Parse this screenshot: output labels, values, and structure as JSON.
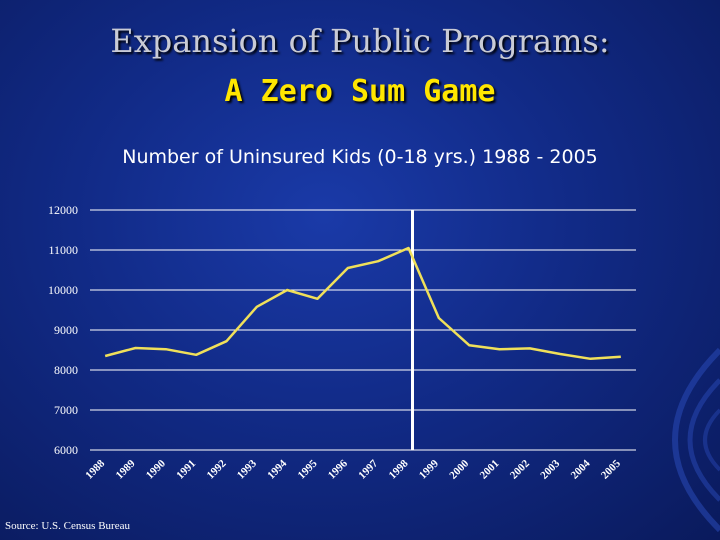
{
  "slide": {
    "title": "Expansion of Public Programs:",
    "subtitle_highlight": "A Zero Sum Game",
    "source": "Source: U.S. Census Bureau"
  },
  "colors": {
    "line": "#f0e05a",
    "marker_line": "#ffffff",
    "grid": "#ffffff"
  },
  "chart_data": {
    "type": "line",
    "title": "Number of Uninsured Kids (0-18 yrs.) 1988 - 2005",
    "xlabel": "",
    "ylabel": "",
    "categories": [
      "1988",
      "1989",
      "1990",
      "1991",
      "1992",
      "1993",
      "1994",
      "1995",
      "1996",
      "1997",
      "1998",
      "1999",
      "2000",
      "2001",
      "2002",
      "2003",
      "2004",
      "2005"
    ],
    "series": [
      {
        "name": "Uninsured Kids",
        "values": [
          8350,
          8550,
          8520,
          8380,
          8720,
          9580,
          10000,
          9780,
          10550,
          10720,
          11050,
          9300,
          8620,
          8520,
          8540,
          8400,
          8280,
          8330
        ]
      }
    ],
    "ylim": [
      6000,
      12000
    ],
    "yticks": [
      6000,
      7000,
      8000,
      9000,
      10000,
      11000,
      12000
    ],
    "grid": true,
    "marker_category": "1998"
  }
}
